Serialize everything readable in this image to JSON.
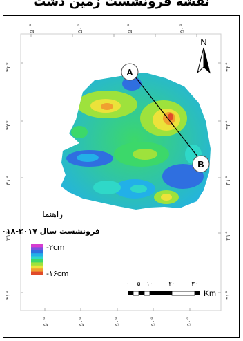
{
  "header": {
    "title_fragment": "نقشه فرونشست زمین دشت"
  },
  "north_arrow": {
    "letter": "N"
  },
  "profile": {
    "point_a": "A",
    "point_b": "B"
  },
  "graticule": {
    "top_labels": [
      "۵۰°",
      "۵۰°",
      "۵۰°",
      "۵۰°"
    ],
    "bottom_labels": [
      "۵۰°",
      "۵۰°",
      "۵۰°",
      "۵۰°",
      "۵۰°"
    ],
    "left_labels": [
      "۳۲°",
      "۳۲°",
      "۳۱°",
      "۳۱°",
      "۳۱°"
    ],
    "right_labels": [
      "۳۲°",
      "۳۲°",
      "۳۱°",
      "۳۱°",
      "۳۱°"
    ]
  },
  "legend": {
    "heading": "راهنما",
    "subtitle": "فرونشست سال ۲۰۱۷-۲۰۱۸",
    "max_label": "-۲cm",
    "min_label": "-۱۶cm",
    "colors": [
      "#d63cd0",
      "#7a52e0",
      "#2f6fe0",
      "#22b0e8",
      "#2fd8c8",
      "#3cd86a",
      "#9ee23c",
      "#ece23a",
      "#f0a030",
      "#e04a2a"
    ]
  },
  "scale_bar": {
    "ticks": [
      "۰",
      "۵",
      "۱۰",
      "۲۰",
      "۳۰"
    ],
    "unit": "Km"
  }
}
